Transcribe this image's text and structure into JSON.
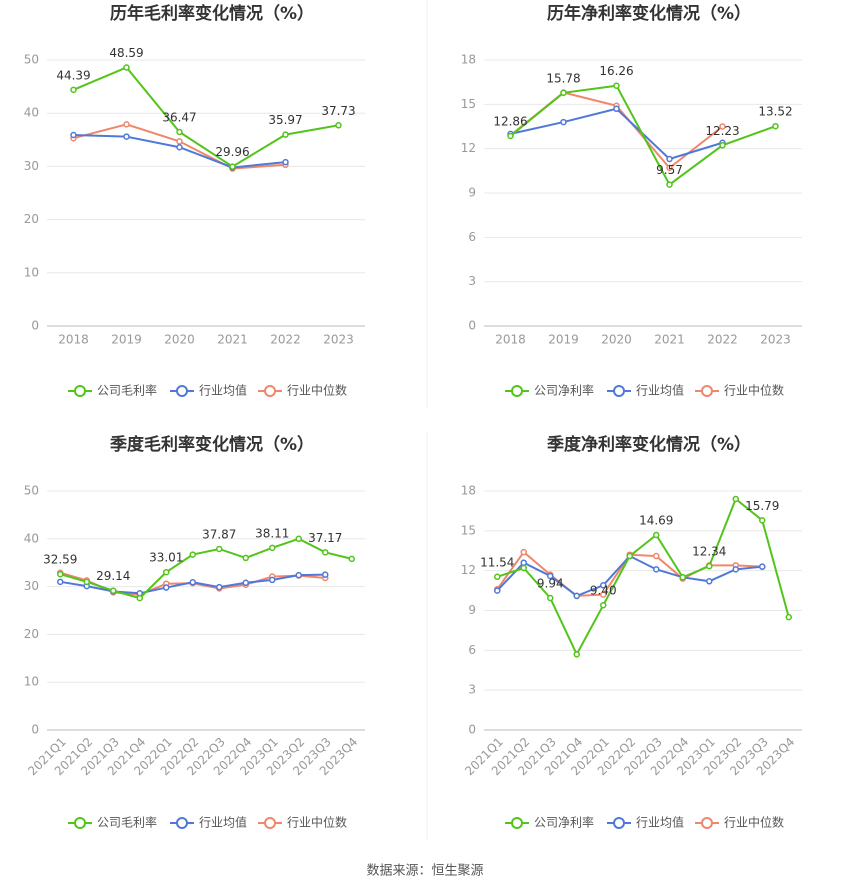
{
  "chart_data": [
    {
      "type": "line",
      "title": "历年毛利率变化情况（%）",
      "categories": [
        "2018",
        "2019",
        "2020",
        "2021",
        "2022",
        "2023"
      ],
      "ylim": [
        0,
        50
      ],
      "yticks": [
        0,
        10,
        20,
        30,
        40,
        50
      ],
      "grid": true,
      "series": [
        {
          "name": "公司毛利率",
          "color": "#52c41a",
          "values": [
            44.39,
            48.59,
            36.47,
            29.96,
            35.97,
            37.73
          ],
          "value_labels": [
            "44.39",
            "48.59",
            "36.47",
            "29.96",
            "35.97",
            "37.73"
          ]
        },
        {
          "name": "行业均值",
          "color": "#4f79d8",
          "values": [
            35.9,
            35.6,
            33.6,
            29.8,
            30.8,
            null
          ]
        },
        {
          "name": "行业中位数",
          "color": "#f0866a",
          "values": [
            35.3,
            37.9,
            34.7,
            29.6,
            30.3,
            null
          ]
        }
      ]
    },
    {
      "type": "line",
      "title": "历年净利率变化情况（%）",
      "categories": [
        "2018",
        "2019",
        "2020",
        "2021",
        "2022",
        "2023"
      ],
      "ylim": [
        0,
        18
      ],
      "yticks": [
        0,
        3,
        6,
        9,
        12,
        15,
        18
      ],
      "grid": true,
      "series": [
        {
          "name": "公司净利率",
          "color": "#52c41a",
          "values": [
            12.86,
            15.78,
            16.26,
            9.57,
            12.23,
            13.52
          ],
          "value_labels": [
            "12.86",
            "15.78",
            "16.26",
            "9.57",
            "12.23",
            "13.52"
          ]
        },
        {
          "name": "行业均值",
          "color": "#4f79d8",
          "values": [
            13.0,
            13.8,
            14.7,
            11.3,
            12.4,
            null
          ]
        },
        {
          "name": "行业中位数",
          "color": "#f0866a",
          "values": [
            12.9,
            15.8,
            14.9,
            10.7,
            13.5,
            null
          ]
        }
      ]
    },
    {
      "type": "line",
      "title": "季度毛利率变化情况（%）",
      "categories": [
        "2021Q1",
        "2021Q2",
        "2021Q3",
        "2021Q4",
        "2022Q1",
        "2022Q2",
        "2022Q3",
        "2022Q4",
        "2023Q1",
        "2023Q2",
        "2023Q3",
        "2023Q4"
      ],
      "ylim": [
        0,
        50
      ],
      "yticks": [
        0,
        10,
        20,
        30,
        40,
        50
      ],
      "grid": true,
      "series": [
        {
          "name": "公司毛利率",
          "color": "#52c41a",
          "values": [
            32.59,
            31.0,
            29.14,
            27.6,
            33.01,
            36.7,
            37.87,
            36.0,
            38.11,
            40.0,
            37.17,
            35.8
          ],
          "value_labels": [
            "32.59",
            null,
            "29.14",
            null,
            "33.01",
            null,
            "37.87",
            null,
            "38.11",
            null,
            "37.17",
            null
          ]
        },
        {
          "name": "行业均值",
          "color": "#4f79d8",
          "values": [
            31.0,
            30.1,
            29.0,
            28.6,
            29.8,
            30.9,
            29.9,
            30.8,
            31.4,
            32.4,
            32.5,
            null
          ]
        },
        {
          "name": "行业中位数",
          "color": "#f0866a",
          "values": [
            32.9,
            31.3,
            28.8,
            28.3,
            30.6,
            30.7,
            29.6,
            30.4,
            32.1,
            32.3,
            31.8,
            null
          ]
        }
      ]
    },
    {
      "type": "line",
      "title": "季度净利率变化情况（%）",
      "categories": [
        "2021Q1",
        "2021Q2",
        "2021Q3",
        "2021Q4",
        "2022Q1",
        "2022Q2",
        "2022Q3",
        "2022Q4",
        "2023Q1",
        "2023Q2",
        "2023Q3",
        "2023Q4"
      ],
      "ylim": [
        0,
        18
      ],
      "yticks": [
        0,
        3,
        6,
        9,
        12,
        15,
        18
      ],
      "grid": true,
      "series": [
        {
          "name": "公司净利率",
          "color": "#52c41a",
          "values": [
            11.54,
            12.2,
            9.94,
            5.7,
            9.4,
            13.1,
            14.69,
            11.5,
            12.34,
            17.4,
            15.79,
            8.5
          ],
          "value_labels": [
            "11.54",
            null,
            "9.94",
            null,
            "9.40",
            null,
            "14.69",
            null,
            "12.34",
            null,
            "15.79",
            null
          ]
        },
        {
          "name": "行业均值",
          "color": "#4f79d8",
          "values": [
            10.5,
            12.6,
            11.6,
            10.1,
            10.9,
            13.1,
            12.1,
            11.5,
            11.2,
            12.1,
            12.3,
            null
          ]
        },
        {
          "name": "行业中位数",
          "color": "#f0866a",
          "values": [
            10.6,
            13.4,
            11.7,
            10.1,
            10.2,
            13.2,
            13.1,
            11.4,
            12.4,
            12.4,
            12.3,
            null
          ]
        }
      ]
    }
  ],
  "source": "数据来源：恒生聚源"
}
